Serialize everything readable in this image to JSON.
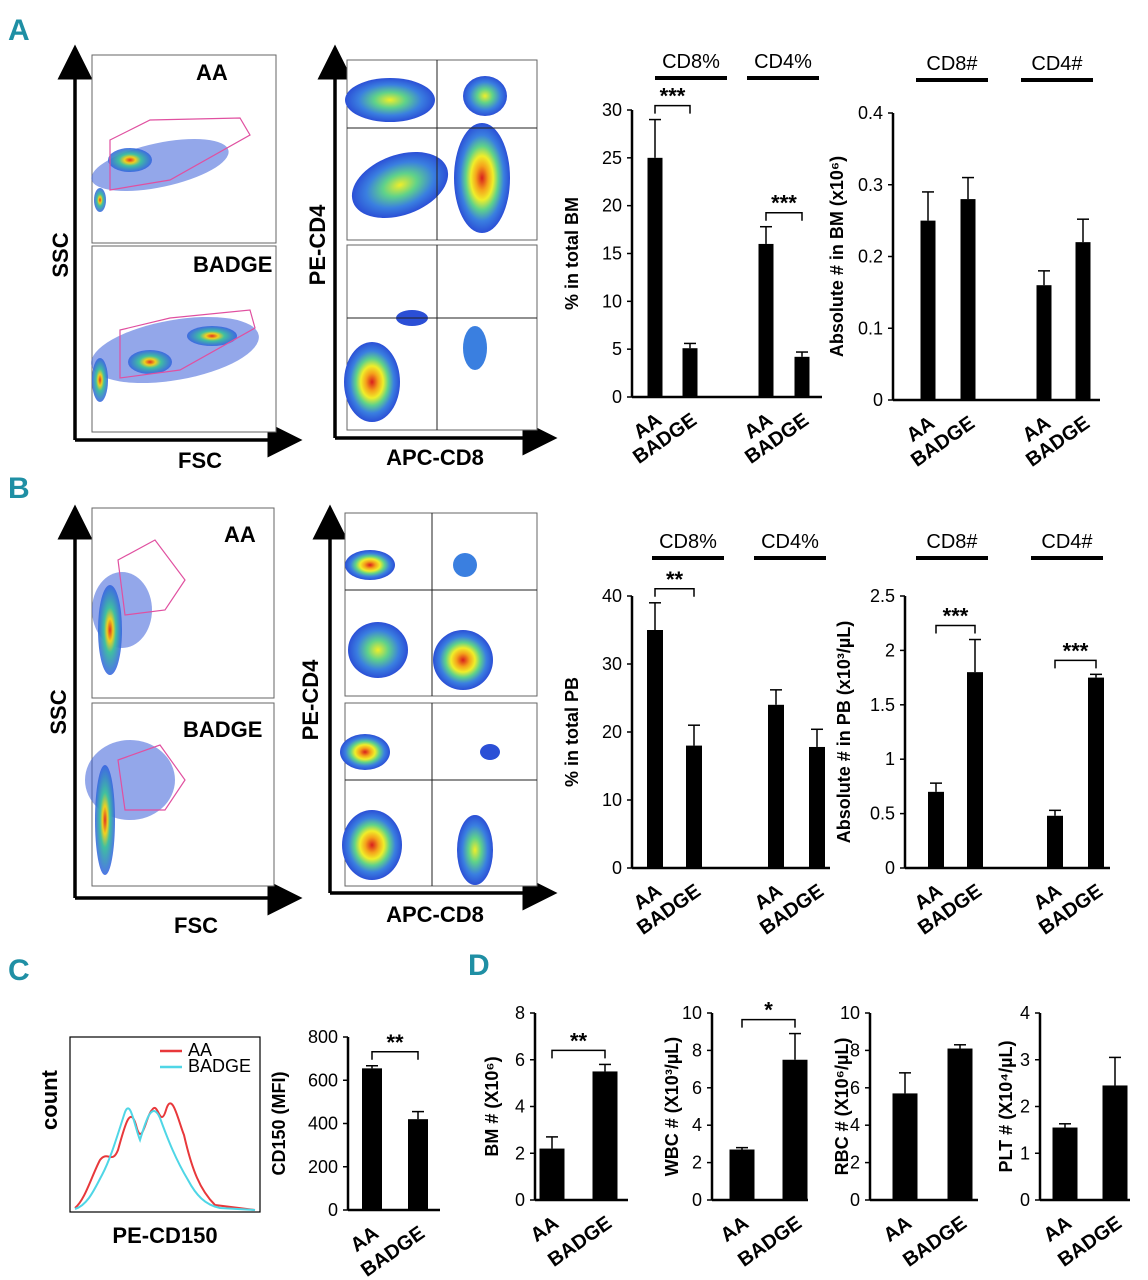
{
  "panel_labels": [
    "A",
    "B",
    "C",
    "D"
  ],
  "flow": {
    "A": {
      "scatter": {
        "xlabel": "FSC",
        "ylabel": "SSC",
        "top_label": "AA",
        "bottom_label": "BADGE"
      },
      "quad": {
        "xlabel": "APC-CD8",
        "ylabel": "PE-CD4"
      }
    },
    "B": {
      "scatter": {
        "xlabel": "FSC",
        "ylabel": "SSC",
        "top_label": "AA",
        "bottom_label": "BADGE"
      },
      "quad": {
        "xlabel": "APC-CD8",
        "ylabel": "PE-CD4"
      }
    },
    "C": {
      "xlabel": "PE-CD150",
      "ylabel": "count",
      "legend": [
        {
          "name": "AA",
          "color": "#e8383b"
        },
        {
          "name": "BADGE",
          "color": "#4fd6e6"
        }
      ]
    }
  },
  "chart_data": [
    {
      "id": "A-pct",
      "type": "bar",
      "ylabel": "% in total BM",
      "ylim": [
        0,
        30
      ],
      "yticks": [
        "0",
        "5",
        "10",
        "15",
        "20",
        "25",
        "30"
      ],
      "groups": [
        "CD8%",
        "CD4%"
      ],
      "categories": [
        "AA",
        "BADGE",
        "AA",
        "BADGE"
      ],
      "values": [
        25,
        5.1,
        16,
        4.2
      ],
      "errors": [
        4,
        0.5,
        1.8,
        0.5
      ],
      "sig": [
        {
          "from": 0,
          "to": 1,
          "label": "***"
        },
        {
          "from": 2,
          "to": 3,
          "label": "***"
        }
      ]
    },
    {
      "id": "A-abs",
      "type": "bar",
      "ylabel": "Absolute # in BM (x10⁶)",
      "ylim": [
        0,
        0.4
      ],
      "yticks": [
        "0",
        "0.1",
        "0.2",
        "0.3",
        "0.4"
      ],
      "groups": [
        "CD8#",
        "CD4#"
      ],
      "categories": [
        "AA",
        "BADGE",
        "AA",
        "BADGE"
      ],
      "values": [
        0.25,
        0.28,
        0.16,
        0.22
      ],
      "errors": [
        0.04,
        0.03,
        0.02,
        0.032
      ],
      "sig": []
    },
    {
      "id": "B-pct",
      "type": "bar",
      "ylabel": "% in total PB",
      "ylim": [
        0,
        40
      ],
      "yticks": [
        "0",
        "10",
        "20",
        "30",
        "40"
      ],
      "groups": [
        "CD8%",
        "CD4%"
      ],
      "categories": [
        "AA",
        "BADGE",
        "AA",
        "BADGE"
      ],
      "values": [
        35,
        18,
        24,
        17.8
      ],
      "errors": [
        4,
        3,
        2.2,
        2.6
      ],
      "sig": [
        {
          "from": 0,
          "to": 1,
          "label": "**"
        }
      ]
    },
    {
      "id": "B-abs",
      "type": "bar",
      "ylabel": "Absolute # in PB (x10³/µL)",
      "ylim": [
        0,
        2.5
      ],
      "yticks": [
        "0",
        "0.5",
        "1",
        "1.5",
        "2",
        "2.5"
      ],
      "groups": [
        "CD8#",
        "CD4#"
      ],
      "categories": [
        "AA",
        "BADGE",
        "AA",
        "BADGE"
      ],
      "values": [
        0.7,
        1.8,
        0.48,
        1.75
      ],
      "errors": [
        0.08,
        0.3,
        0.05,
        0.03
      ],
      "sig": [
        {
          "from": 0,
          "to": 1,
          "label": "***"
        },
        {
          "from": 2,
          "to": 3,
          "label": "***"
        }
      ]
    },
    {
      "id": "C-mfi",
      "type": "bar",
      "ylabel": "CD150 (MFI)",
      "ylim": [
        0,
        800
      ],
      "yticks": [
        "0",
        "200",
        "400",
        "600",
        "800"
      ],
      "groups": [],
      "categories": [
        "AA",
        "BADGE"
      ],
      "values": [
        655,
        420
      ],
      "errors": [
        12,
        35
      ],
      "sig": [
        {
          "from": 0,
          "to": 1,
          "label": "**"
        }
      ]
    },
    {
      "id": "D-bm",
      "type": "bar",
      "ylabel": "BM # (X10⁶)",
      "ylim": [
        0,
        8
      ],
      "yticks": [
        "0",
        "2",
        "4",
        "6",
        "8"
      ],
      "groups": [],
      "categories": [
        "AA",
        "BADGE"
      ],
      "values": [
        2.2,
        5.5
      ],
      "errors": [
        0.5,
        0.3
      ],
      "sig": [
        {
          "from": 0,
          "to": 1,
          "label": "**"
        }
      ]
    },
    {
      "id": "D-wbc",
      "type": "bar",
      "ylabel": "WBC # (X10³/µL)",
      "ylim": [
        0,
        10
      ],
      "yticks": [
        "0",
        "2",
        "4",
        "6",
        "8",
        "10"
      ],
      "groups": [],
      "categories": [
        "AA",
        "BADGE"
      ],
      "values": [
        2.7,
        7.5
      ],
      "errors": [
        0.1,
        1.4
      ],
      "sig": [
        {
          "from": 0,
          "to": 1,
          "label": "*"
        }
      ]
    },
    {
      "id": "D-rbc",
      "type": "bar",
      "ylabel": "RBC # (X10⁶/µL)",
      "ylim": [
        0,
        10
      ],
      "yticks": [
        "0",
        "2",
        "4",
        "6",
        "8",
        "10"
      ],
      "groups": [],
      "categories": [
        "AA",
        "BADGE"
      ],
      "values": [
        5.7,
        8.1
      ],
      "errors": [
        1.1,
        0.2
      ],
      "sig": []
    },
    {
      "id": "D-plt",
      "type": "bar",
      "ylabel": "PLT # (X10⁴/µL)",
      "ylim": [
        0,
        4
      ],
      "yticks": [
        "0",
        "1",
        "2",
        "3",
        "4"
      ],
      "groups": [],
      "categories": [
        "AA",
        "BADGE"
      ],
      "values": [
        1.55,
        2.45
      ],
      "errors": [
        0.08,
        0.6
      ],
      "sig": []
    }
  ]
}
